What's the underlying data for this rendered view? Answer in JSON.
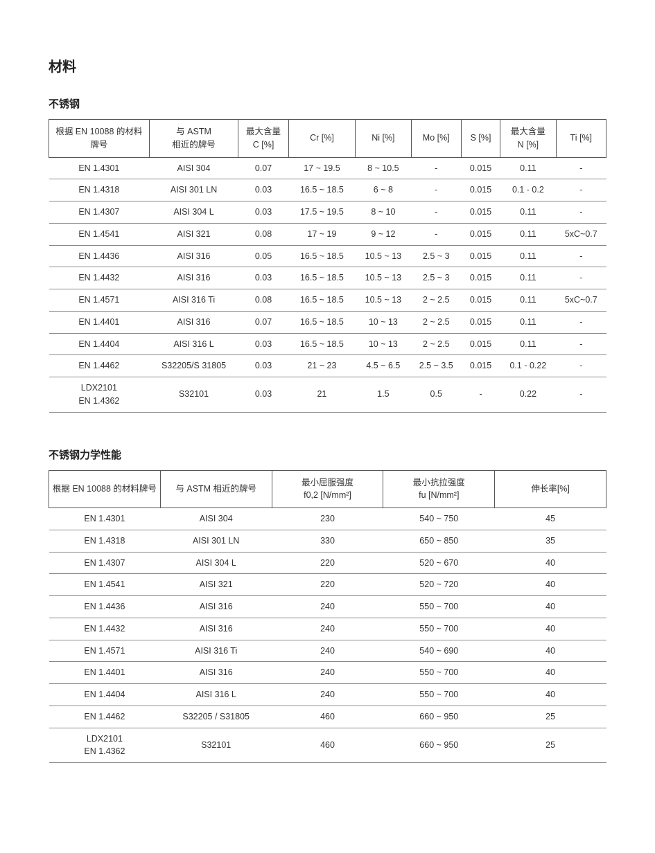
{
  "page": {
    "title": "材料",
    "sections": {
      "table1_title": "不锈钢",
      "table2_title": "不锈钢力学性能"
    }
  },
  "table1": {
    "headers": {
      "en_grade": "根据 EN 10088 的材料牌号",
      "astm": "与 ASTM\n相近的牌号",
      "c_max": "最大含量\nC [%]",
      "cr": "Cr [%]",
      "ni": "Ni [%]",
      "mo": "Mo [%]",
      "s": "S [%]",
      "n_max": "最大含量\nN [%]",
      "ti": "Ti [%]"
    },
    "rows": [
      {
        "en": "EN 1.4301",
        "astm": "AISI 304",
        "c": "0.07",
        "cr": "17 ~ 19.5",
        "ni": "8 ~ 10.5",
        "mo": "-",
        "s": "0.015",
        "n": "0.11",
        "ti": "-",
        "sep": false
      },
      {
        "en": "EN 1.4318",
        "astm": "AISI 301 LN",
        "c": "0.03",
        "cr": "16.5 ~ 18.5",
        "ni": "6 ~ 8",
        "mo": "-",
        "s": "0.015",
        "n": "0.1 - 0.2",
        "ti": "-",
        "sep": false
      },
      {
        "en": "EN 1.4307",
        "astm": "AISI 304 L",
        "c": "0.03",
        "cr": "17.5 ~ 19.5",
        "ni": "8 ~ 10",
        "mo": "-",
        "s": "0.015",
        "n": "0.11",
        "ti": "-",
        "sep": false
      },
      {
        "en": "EN 1.4541",
        "astm": "AISI 321",
        "c": "0.08",
        "cr": "17 ~ 19",
        "ni": "9 ~ 12",
        "mo": "-",
        "s": "0.015",
        "n": "0.11",
        "ti": "5xC~0.7",
        "sep": false
      },
      {
        "en": "EN 1.4436",
        "astm": "AISI 316",
        "c": "0.05",
        "cr": "16.5 ~ 18.5",
        "ni": "10.5 ~ 13",
        "mo": "2.5 ~ 3",
        "s": "0.015",
        "n": "0.11",
        "ti": "-",
        "sep": true
      },
      {
        "en": "EN 1.4432",
        "astm": "AISI 316",
        "c": "0.03",
        "cr": "16.5 ~ 18.5",
        "ni": "10.5 ~ 13",
        "mo": "2.5 ~ 3",
        "s": "0.015",
        "n": "0.11",
        "ti": "-",
        "sep": false
      },
      {
        "en": "EN 1.4571",
        "astm": "AISI 316 Ti",
        "c": "0.08",
        "cr": "16.5 ~ 18.5",
        "ni": "10.5 ~ 13",
        "mo": "2 ~ 2.5",
        "s": "0.015",
        "n": "0.11",
        "ti": "5xC~0.7",
        "sep": false
      },
      {
        "en": "EN 1.4401",
        "astm": "AISI 316",
        "c": "0.07",
        "cr": "16.5 ~ 18.5",
        "ni": "10 ~ 13",
        "mo": "2 ~ 2.5",
        "s": "0.015",
        "n": "0.11",
        "ti": "-",
        "sep": true
      },
      {
        "en": "EN 1.4404",
        "astm": "AISI 316 L",
        "c": "0.03",
        "cr": "16.5 ~ 18.5",
        "ni": "10 ~ 13",
        "mo": "2 ~ 2.5",
        "s": "0.015",
        "n": "0.11",
        "ti": "-",
        "sep": false
      },
      {
        "en": "EN 1.4462",
        "astm": "S32205/S 31805",
        "c": "0.03",
        "cr": "21 ~ 23",
        "ni": "4.5 ~ 6.5",
        "mo": "2.5 ~ 3.5",
        "s": "0.015",
        "n": "0.1 - 0.22",
        "ti": "-",
        "sep": true
      },
      {
        "en": "LDX2101\nEN 1.4362",
        "astm": "S32101",
        "c": "0.03",
        "cr": "21",
        "ni": "1.5",
        "mo": "0.5",
        "s": "-",
        "n": "0.22",
        "ti": "-",
        "sep": false
      }
    ]
  },
  "table2": {
    "headers": {
      "en_grade": "根据 EN 10088 的材料牌号",
      "astm": "与 ASTM 相近的牌号",
      "yield": "最小屈服强度\nf0,2  [N/mm²]",
      "tensile": "最小抗拉强度\nfu  [N/mm²]",
      "elong": "伸长率[%]"
    },
    "rows": [
      {
        "en": "EN 1.4301",
        "astm": "AISI 304",
        "yield": "230",
        "tensile": "540 ~ 750",
        "elong": "45",
        "sep": false
      },
      {
        "en": "EN 1.4318",
        "astm": "AISI 301 LN",
        "yield": "330",
        "tensile": "650 ~ 850",
        "elong": "35",
        "sep": false
      },
      {
        "en": "EN 1.4307",
        "astm": "AISI 304 L",
        "yield": "220",
        "tensile": "520 ~ 670",
        "elong": "40",
        "sep": false
      },
      {
        "en": "EN 1.4541",
        "astm": "AISI 321",
        "yield": "220",
        "tensile": "520 ~ 720",
        "elong": "40",
        "sep": false
      },
      {
        "en": "EN 1.4436",
        "astm": "AISI 316",
        "yield": "240",
        "tensile": "550 ~ 700",
        "elong": "40",
        "sep": true
      },
      {
        "en": "EN 1.4432",
        "astm": "AISI 316",
        "yield": "240",
        "tensile": "550 ~ 700",
        "elong": "40",
        "sep": false
      },
      {
        "en": "EN 1.4571",
        "astm": "AISI 316 Ti",
        "yield": "240",
        "tensile": "540 ~ 690",
        "elong": "40",
        "sep": false
      },
      {
        "en": "EN 1.4401",
        "astm": "AISI 316",
        "yield": "240",
        "tensile": "550 ~ 700",
        "elong": "40",
        "sep": true
      },
      {
        "en": "EN 1.4404",
        "astm": "AISI 316 L",
        "yield": "240",
        "tensile": "550 ~ 700",
        "elong": "40",
        "sep": false
      },
      {
        "en": "EN 1.4462",
        "astm": "S32205 / S31805",
        "yield": "460",
        "tensile": "660 ~ 950",
        "elong": "25",
        "sep": true
      },
      {
        "en": "LDX2101\nEN 1.4362",
        "astm": "S32101",
        "yield": "460",
        "tensile": "660 ~ 950",
        "elong": "25",
        "sep": false
      }
    ]
  },
  "style": {
    "background_color": "#ffffff",
    "text_color": "#333333",
    "border_color": "#555555",
    "row_border_color": "#888888",
    "title_fontsize_pt": 20,
    "subtitle_fontsize_pt": 15,
    "body_fontsize_pt": 12.5,
    "font_family": "Arial / Microsoft YaHei / SimSun"
  }
}
